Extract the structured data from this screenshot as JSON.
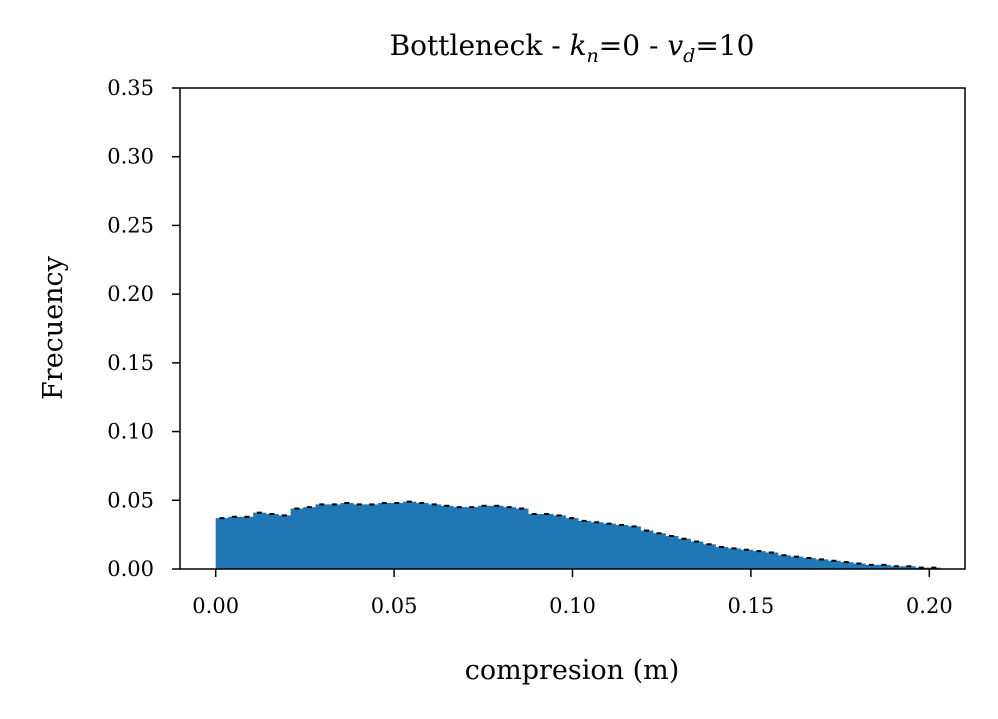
{
  "chart_data": {
    "type": "bar",
    "title": {
      "prefix": "Bottleneck - ",
      "k_symbol": "k",
      "k_subscript": "n",
      "k_value": "=0 - ",
      "v_symbol": "v",
      "v_subscript": "d",
      "v_value": "=10"
    },
    "xlabel": "compresion (m)",
    "ylabel": "Frecuency",
    "xlim": [
      -0.01,
      0.21
    ],
    "ylim": [
      0,
      0.35
    ],
    "xticks": [
      "0.00",
      "0.05",
      "0.10",
      "0.15",
      "0.20"
    ],
    "yticks": [
      "0.00",
      "0.05",
      "0.10",
      "0.15",
      "0.20",
      "0.25",
      "0.30",
      "0.35"
    ],
    "bin_width": 0.0035,
    "bin_start": 0.0,
    "values": [
      0.037,
      0.038,
      0.038,
      0.041,
      0.04,
      0.039,
      0.044,
      0.045,
      0.047,
      0.047,
      0.048,
      0.047,
      0.047,
      0.048,
      0.048,
      0.049,
      0.048,
      0.047,
      0.046,
      0.045,
      0.045,
      0.046,
      0.046,
      0.045,
      0.044,
      0.04,
      0.04,
      0.039,
      0.037,
      0.035,
      0.034,
      0.033,
      0.032,
      0.031,
      0.028,
      0.026,
      0.024,
      0.022,
      0.02,
      0.018,
      0.016,
      0.015,
      0.014,
      0.013,
      0.012,
      0.01,
      0.009,
      0.008,
      0.007,
      0.006,
      0.005,
      0.004,
      0.003,
      0.003,
      0.002,
      0.002,
      0.001,
      0.001,
      0.0,
      0.0
    ],
    "bar_color": "#1f77b4",
    "errorbar_color": "#000000",
    "grid": false
  }
}
